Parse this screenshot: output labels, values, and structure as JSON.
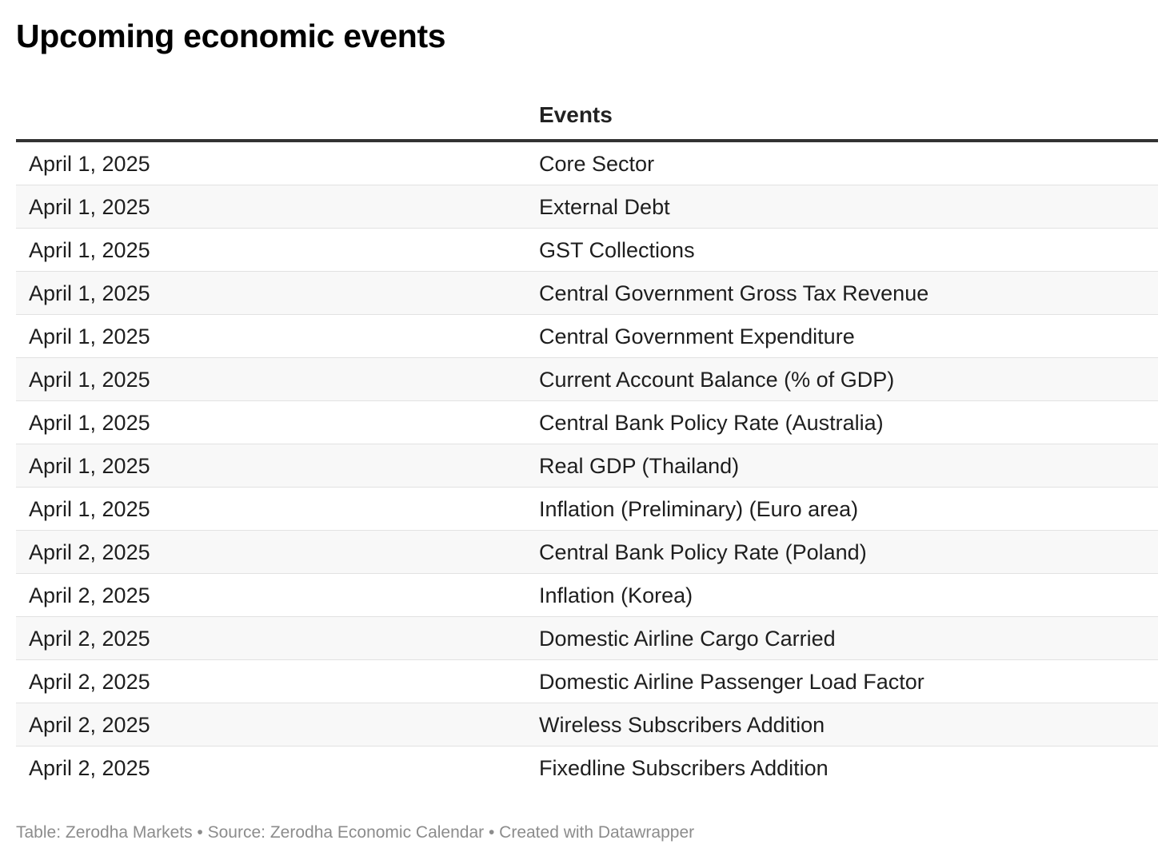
{
  "title": "Upcoming economic events",
  "chart_data": {
    "type": "table",
    "title": "Upcoming economic events",
    "columns": [
      "",
      "Events"
    ],
    "rows": [
      {
        "date": "April 1, 2025",
        "event": "Core Sector"
      },
      {
        "date": "April 1, 2025",
        "event": "External Debt"
      },
      {
        "date": "April 1, 2025",
        "event": "GST Collections"
      },
      {
        "date": "April 1, 2025",
        "event": "Central Government Gross Tax Revenue"
      },
      {
        "date": "April 1, 2025",
        "event": "Central Government Expenditure"
      },
      {
        "date": "April 1, 2025",
        "event": "Current Account Balance (% of GDP)"
      },
      {
        "date": "April 1, 2025",
        "event": "Central Bank Policy Rate (Australia)"
      },
      {
        "date": "April 1, 2025",
        "event": "Real GDP (Thailand)"
      },
      {
        "date": "April 1, 2025",
        "event": "Inflation (Preliminary) (Euro area)"
      },
      {
        "date": "April 2, 2025",
        "event": "Central Bank Policy Rate (Poland)"
      },
      {
        "date": "April 2, 2025",
        "event": "Inflation (Korea)"
      },
      {
        "date": "April 2, 2025",
        "event": "Domestic Airline Cargo Carried"
      },
      {
        "date": "April 2, 2025",
        "event": "Domestic Airline Passenger Load Factor"
      },
      {
        "date": "April 2, 2025",
        "event": "Wireless Subscribers Addition"
      },
      {
        "date": "April 2, 2025",
        "event": "Fixedline Subscribers Addition"
      }
    ]
  },
  "footer": "Table: Zerodha Markets • Source: Zerodha Economic Calendar • Created with Datawrapper",
  "colors": {
    "header_rule": "#333333",
    "zebra": "#f8f8f8",
    "row_divider": "#e2e2e2",
    "footer_text": "#8c8c8c"
  }
}
